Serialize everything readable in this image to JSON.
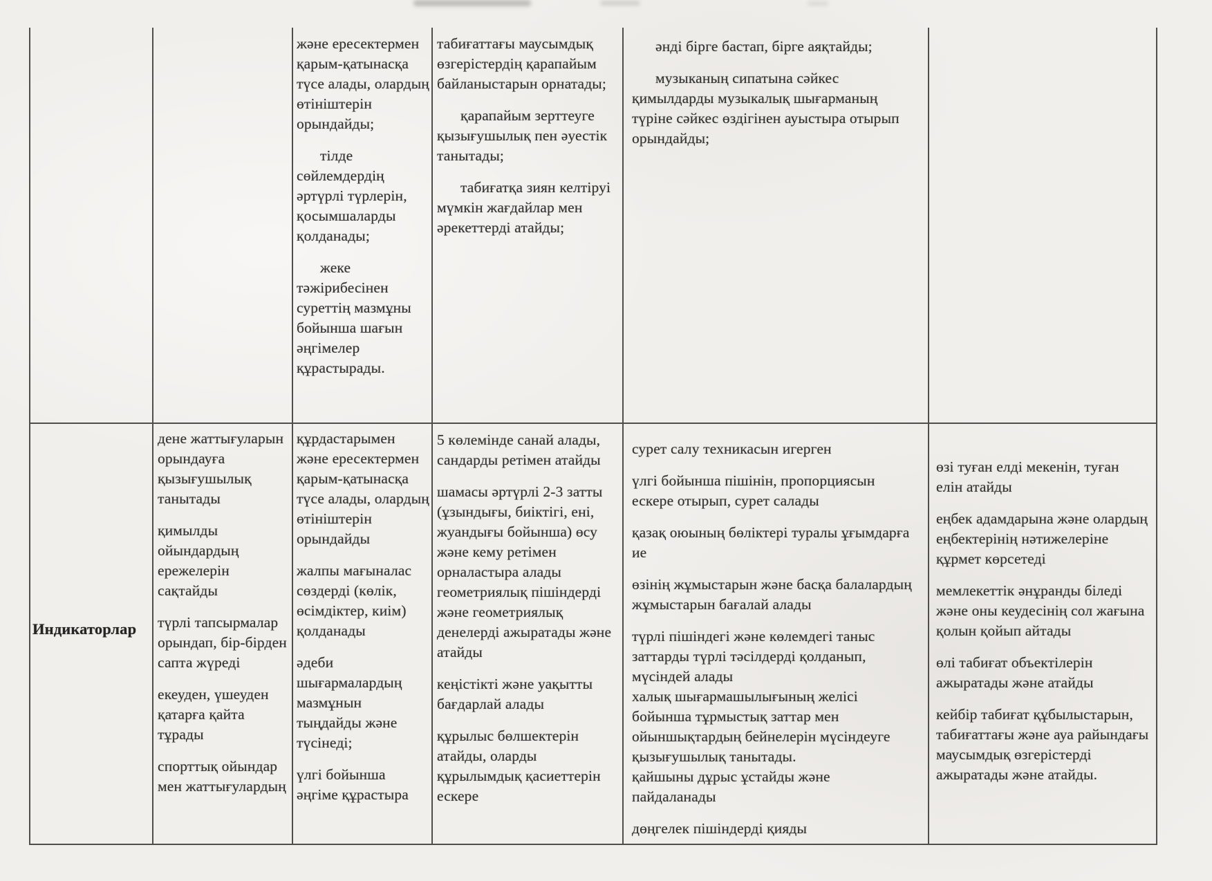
{
  "page": {
    "kind": "scanned Kazakh education standards table, page fragment",
    "background_color": "#f1efec",
    "border_color": "#504e4a",
    "text_color": "#333230"
  },
  "table": {
    "r1": {
      "c3": [
        {
          "text": "және ересектермен қарым-қатынасқа түсе алады, олардың өтініштерін орындайды;",
          "indent": false,
          "gap": false
        },
        {
          "text": "тілде сөйлемдердің әртүрлі түрлерін, қосымшаларды қолданады;",
          "indent": true,
          "gap": true
        },
        {
          "text": "жеке тәжірибесінен суреттің мазмұны бойынша шағын әңгімелер құрастырады.",
          "indent": true,
          "gap": true
        }
      ],
      "c4": [
        {
          "text": "табиғаттағы маусымдық өзгерістердің қарапайым байланыстарын орнатады;",
          "indent": false,
          "gap": false
        },
        {
          "text": "қарапайым зерттеуге қызығушылық пен әуестік танытады;",
          "indent": true,
          "gap": true
        },
        {
          "text": "табиғатқа зиян келтіруі мүмкін жағдайлар мен әрекеттерді атайды;",
          "indent": true,
          "gap": true
        }
      ],
      "c5": [
        {
          "text": "әнді бірге бастап, бірге аяқтайды;",
          "indent": true,
          "gap": false
        },
        {
          "text": "музыканың сипатына сәйкес қимылдарды музыкалық шығарманың түріне сәйкес өздігінен ауыстыра отырып орындайды;",
          "indent": true,
          "gap": true
        }
      ]
    },
    "r2": {
      "c1_label": "Индикаторлар",
      "c2": [
        {
          "text": "дене жаттығуларын орындауға қызығушылық танытады",
          "indent": false,
          "gap": false
        },
        {
          "text": "қимылды ойындардың ережелерін сақтайды",
          "indent": false,
          "gap": true
        },
        {
          "text": "түрлі тапсырмалар орындап, бір-бірден сапта жүреді",
          "indent": false,
          "gap": true
        },
        {
          "text": "екеуден, үшеуден қатарға қайта тұрады",
          "indent": false,
          "gap": true
        },
        {
          "text": "спорттық ойындар мен жаттығулардың",
          "indent": false,
          "gap": true
        }
      ],
      "c3": [
        {
          "text": "құрдастарымен және ересектермен қарым-қатынасқа түсе алады, олардың өтініштерін орындайды",
          "indent": false,
          "gap": false
        },
        {
          "text": "жалпы мағыналас сөздерді (көлік, өсімдіктер, киім) қолданады",
          "indent": false,
          "gap": true
        },
        {
          "text": "әдеби шығармалардың мазмұнын тыңдайды және түсінеді;",
          "indent": false,
          "gap": true
        },
        {
          "text": "үлгі бойынша әңгіме құрастыра",
          "indent": false,
          "gap": true
        }
      ],
      "c4": [
        {
          "text": "5 көлемінде санай алады, сандарды ретімен атайды",
          "indent": false,
          "gap": false
        },
        {
          "text": "шамасы әртүрлі 2-3 затты (ұзындығы, биіктігі, ені, жуандығы бойынша) өсу және кему ретімен орналастыра алады",
          "indent": false,
          "gap": true
        },
        {
          "text": "геометриялық пішіндерді және геометриялық денелерді ажыратады және атайды",
          "indent": false,
          "gap": false
        },
        {
          "text": "кеңістікті және уақытты бағдарлай алады",
          "indent": false,
          "gap": true
        },
        {
          "text": "құрылыс бөлшектерін атайды, оларды құрылымдық қасиеттерін ескере",
          "indent": false,
          "gap": true
        }
      ],
      "c5": [
        {
          "text": "сурет салу техникасын игерген",
          "indent": false,
          "gap": false
        },
        {
          "text": "үлгі бойынша пішінін, пропорциясын ескере отырып, сурет салады",
          "indent": false,
          "gap": true
        },
        {
          "text": "қазақ оюының бөліктері туралы ұғымдарға ие",
          "indent": false,
          "gap": true
        },
        {
          "text": "өзінің жұмыстарын және басқа балалардың жұмыстарын бағалай алады",
          "indent": false,
          "gap": true
        },
        {
          "text": "түрлі пішіндегі және көлемдегі таныс заттарды түрлі тәсілдерді қолданып, мүсіндей алады",
          "indent": false,
          "gap": true
        },
        {
          "text": "халық шығармашылығының желісі бойынша тұрмыстық заттар мен ойыншықтардың бейнелерін мүсіндеуге қызығушылық танытады.",
          "indent": false,
          "gap": false
        },
        {
          "text": "қайшыны дұрыс ұстайды және пайдаланады",
          "indent": false,
          "gap": false
        },
        {
          "text": "дөңгелек пішіндерді қияды",
          "indent": false,
          "gap": true
        }
      ],
      "c6": [
        {
          "text": "өзі туған елді мекенін, туған елін атайды",
          "indent": false,
          "gap": false
        },
        {
          "text": "еңбек адамдарына және олардың еңбектерінің нәтижелеріне құрмет көрсетеді",
          "indent": false,
          "gap": true
        },
        {
          "text": "мемлекеттік әнұранды біледі және оны кеудесінің сол жағына қолын қойып айтады",
          "indent": false,
          "gap": true
        },
        {
          "text": "өлі табиғат объектілерін ажыратады және атайды",
          "indent": false,
          "gap": true
        },
        {
          "text": "кейбір табиғат құбылыстарын, табиғаттағы және ауа райындағы маусымдық өзгерістерді ажыратады және атайды.",
          "indent": false,
          "gap": true
        }
      ]
    }
  }
}
